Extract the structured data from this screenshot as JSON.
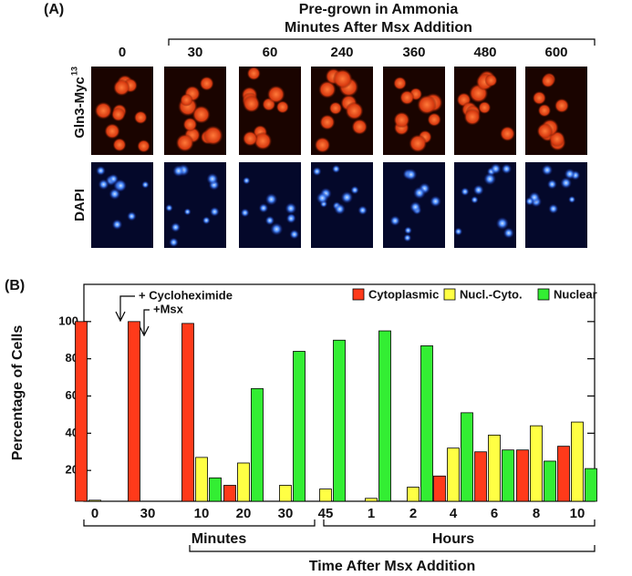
{
  "panel_a": {
    "label": "(A)",
    "title_lines": [
      "Pre-grown in Ammonia",
      "Minutes After Msx Addition"
    ],
    "columns": [
      "0",
      "30",
      "60",
      "240",
      "360",
      "480",
      "600"
    ],
    "rows": [
      {
        "label": "Gln3-Myc",
        "superscript": "13"
      },
      {
        "label": "DAPI"
      }
    ]
  },
  "chart_data": {
    "type": "bar",
    "panel_label": "(B)",
    "ylabel": "Percentage of Cells",
    "categories": [
      "0",
      "30",
      "10",
      "20",
      "30",
      "45",
      "1",
      "2",
      "4",
      "6",
      "8",
      "10"
    ],
    "groups": [
      "Minutes",
      "Hours"
    ],
    "xlabel": "Time After Msx Addition",
    "annotations": [
      "+ Cycloheximide",
      "+Msx"
    ],
    "series": [
      {
        "name": "Cytoplasmic",
        "color": "#ff3a1a",
        "values": [
          100,
          100,
          99,
          12,
          3,
          1,
          1,
          2,
          17,
          30,
          31,
          33
        ]
      },
      {
        "name": "Nucl.-Cyto.",
        "color": "#ffff44",
        "values": [
          4,
          1,
          27,
          24,
          12,
          10,
          5,
          11,
          32,
          39,
          44,
          46
        ]
      },
      {
        "name": "Nuclear",
        "color": "#33ee33",
        "values": [
          1,
          1,
          16,
          64,
          84,
          90,
          95,
          87,
          51,
          31,
          25,
          21
        ]
      }
    ],
    "ylim": [
      0,
      120
    ],
    "yticks": [
      20,
      40,
      60,
      80,
      100
    ],
    "legend": "top-right"
  }
}
